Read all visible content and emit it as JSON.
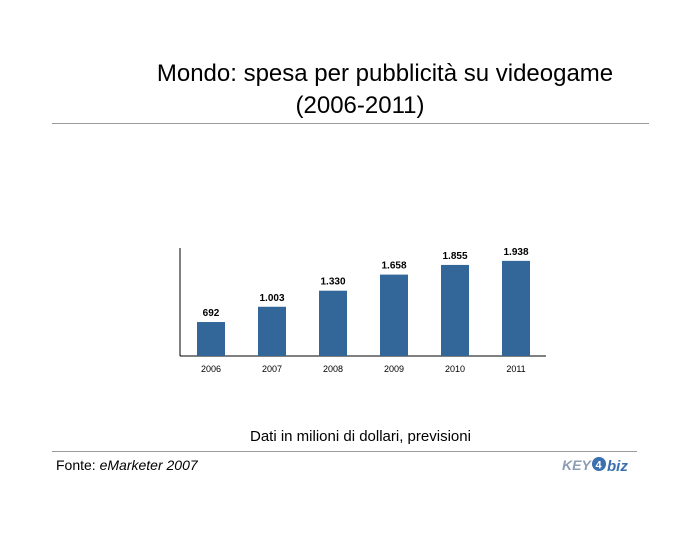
{
  "title": {
    "line1": "Mondo: spesa per pubblicità su videogame",
    "line2": "(2006-2011)"
  },
  "chart_data": {
    "type": "bar",
    "categories": [
      "2006",
      "2007",
      "2008",
      "2009",
      "2010",
      "2011"
    ],
    "values": [
      692,
      1003,
      1330,
      1658,
      1855,
      1938
    ],
    "value_labels": [
      "692",
      "1.003",
      "1.330",
      "1.658",
      "1.855",
      "1.938"
    ],
    "ylim": [
      0,
      2200
    ],
    "bar_color": "#336699",
    "grid": false,
    "legend": "none"
  },
  "note": "Dati in milioni di dollari, previsioni",
  "source": {
    "prefix": "Fonte: ",
    "name": "eMarketer 2007"
  },
  "logo": {
    "text": "KEY4biz",
    "colors": {
      "primary": "#3a6fb0",
      "secondary": "#9aa8b8"
    }
  }
}
